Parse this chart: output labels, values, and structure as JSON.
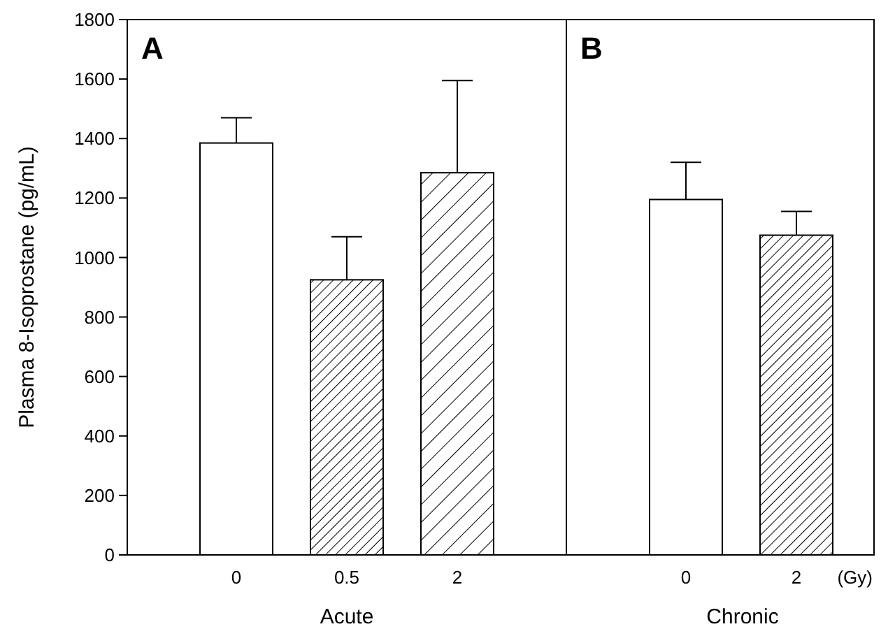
{
  "chart_data": [
    {
      "type": "bar",
      "title": "A",
      "xlabel": "Acute",
      "ylabel": "Plasma 8-Isoprostane (pg/mL)",
      "categories": [
        "0",
        "0.5",
        "2"
      ],
      "values": [
        1385,
        925,
        1285
      ],
      "errors": [
        [
          1385,
          1470
        ],
        [
          925,
          1070
        ],
        [
          1285,
          1595
        ]
      ],
      "colors": [
        "#ffffff",
        "#000000",
        "#000000"
      ],
      "ylim": [
        0,
        1800
      ],
      "yticks": [
        0,
        200,
        400,
        600,
        800,
        1000,
        1200,
        1400,
        1600,
        1800
      ],
      "grid": false
    },
    {
      "type": "bar",
      "title": "B",
      "xlabel": "Chronic",
      "categories": [
        "0",
        "2"
      ],
      "values": [
        1195,
        1075
      ],
      "errors": [
        [
          1195,
          1320
        ],
        [
          1075,
          1155
        ]
      ],
      "colors": [
        "#ffffff",
        "#000000"
      ],
      "ylim": [
        0,
        1800
      ],
      "tick_labels": "x",
      "annotations": [
        "(Gy)"
      ],
      "grid": false
    }
  ]
}
